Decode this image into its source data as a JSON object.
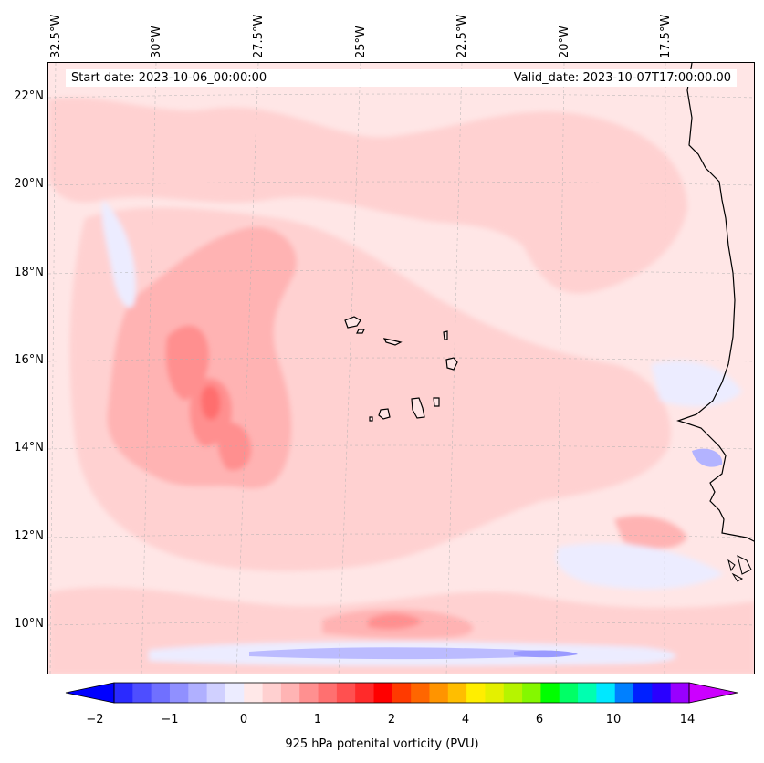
{
  "header": {
    "start_date": "Start date: 2023-10-06_00:00:00",
    "valid_date": "Valid_date: 2023-10-07T17:00:00.00"
  },
  "axes": {
    "longitude_labels": [
      "32.5°W",
      "30°W",
      "27.5°W",
      "25°W",
      "22.5°W",
      "20°W",
      "17.5°W"
    ],
    "latitude_labels": [
      "22°N",
      "20°N",
      "18°N",
      "16°N",
      "14°N",
      "12°N",
      "10°N"
    ]
  },
  "colorbar": {
    "title": "925 hPa potenital vorticity (PVU)",
    "tick_labels": [
      "−2",
      "−1",
      "0",
      "1",
      "2",
      "4",
      "6",
      "10",
      "14"
    ],
    "colors": [
      "#0000ff",
      "#2a2aff",
      "#4e4eff",
      "#7070ff",
      "#9090ff",
      "#b0b0ff",
      "#d0d0ff",
      "#ececff",
      "#ffe8e8",
      "#ffd0d0",
      "#ffb4b4",
      "#ff9090",
      "#ff7070",
      "#ff5050",
      "#ff2a2a",
      "#ff0000",
      "#ff3a00",
      "#ff6600",
      "#ff9400",
      "#ffbe00",
      "#ffee00",
      "#e4f000",
      "#b6f400",
      "#84f800",
      "#00ff00",
      "#00ff66",
      "#00ffb0",
      "#00e8ff",
      "#0080ff",
      "#0020ff",
      "#2a00ff",
      "#9900ff",
      "#cc00ff"
    ]
  },
  "field_colors": {
    "background": "#ffe6e6",
    "light": "#ffd1d1",
    "medium": "#ffb3b3",
    "strong": "#ff8f8f",
    "max": "#ff6e6e",
    "neg_light": "#ececff",
    "neg_medium": "#b3b3ff",
    "coast": "#000000"
  }
}
